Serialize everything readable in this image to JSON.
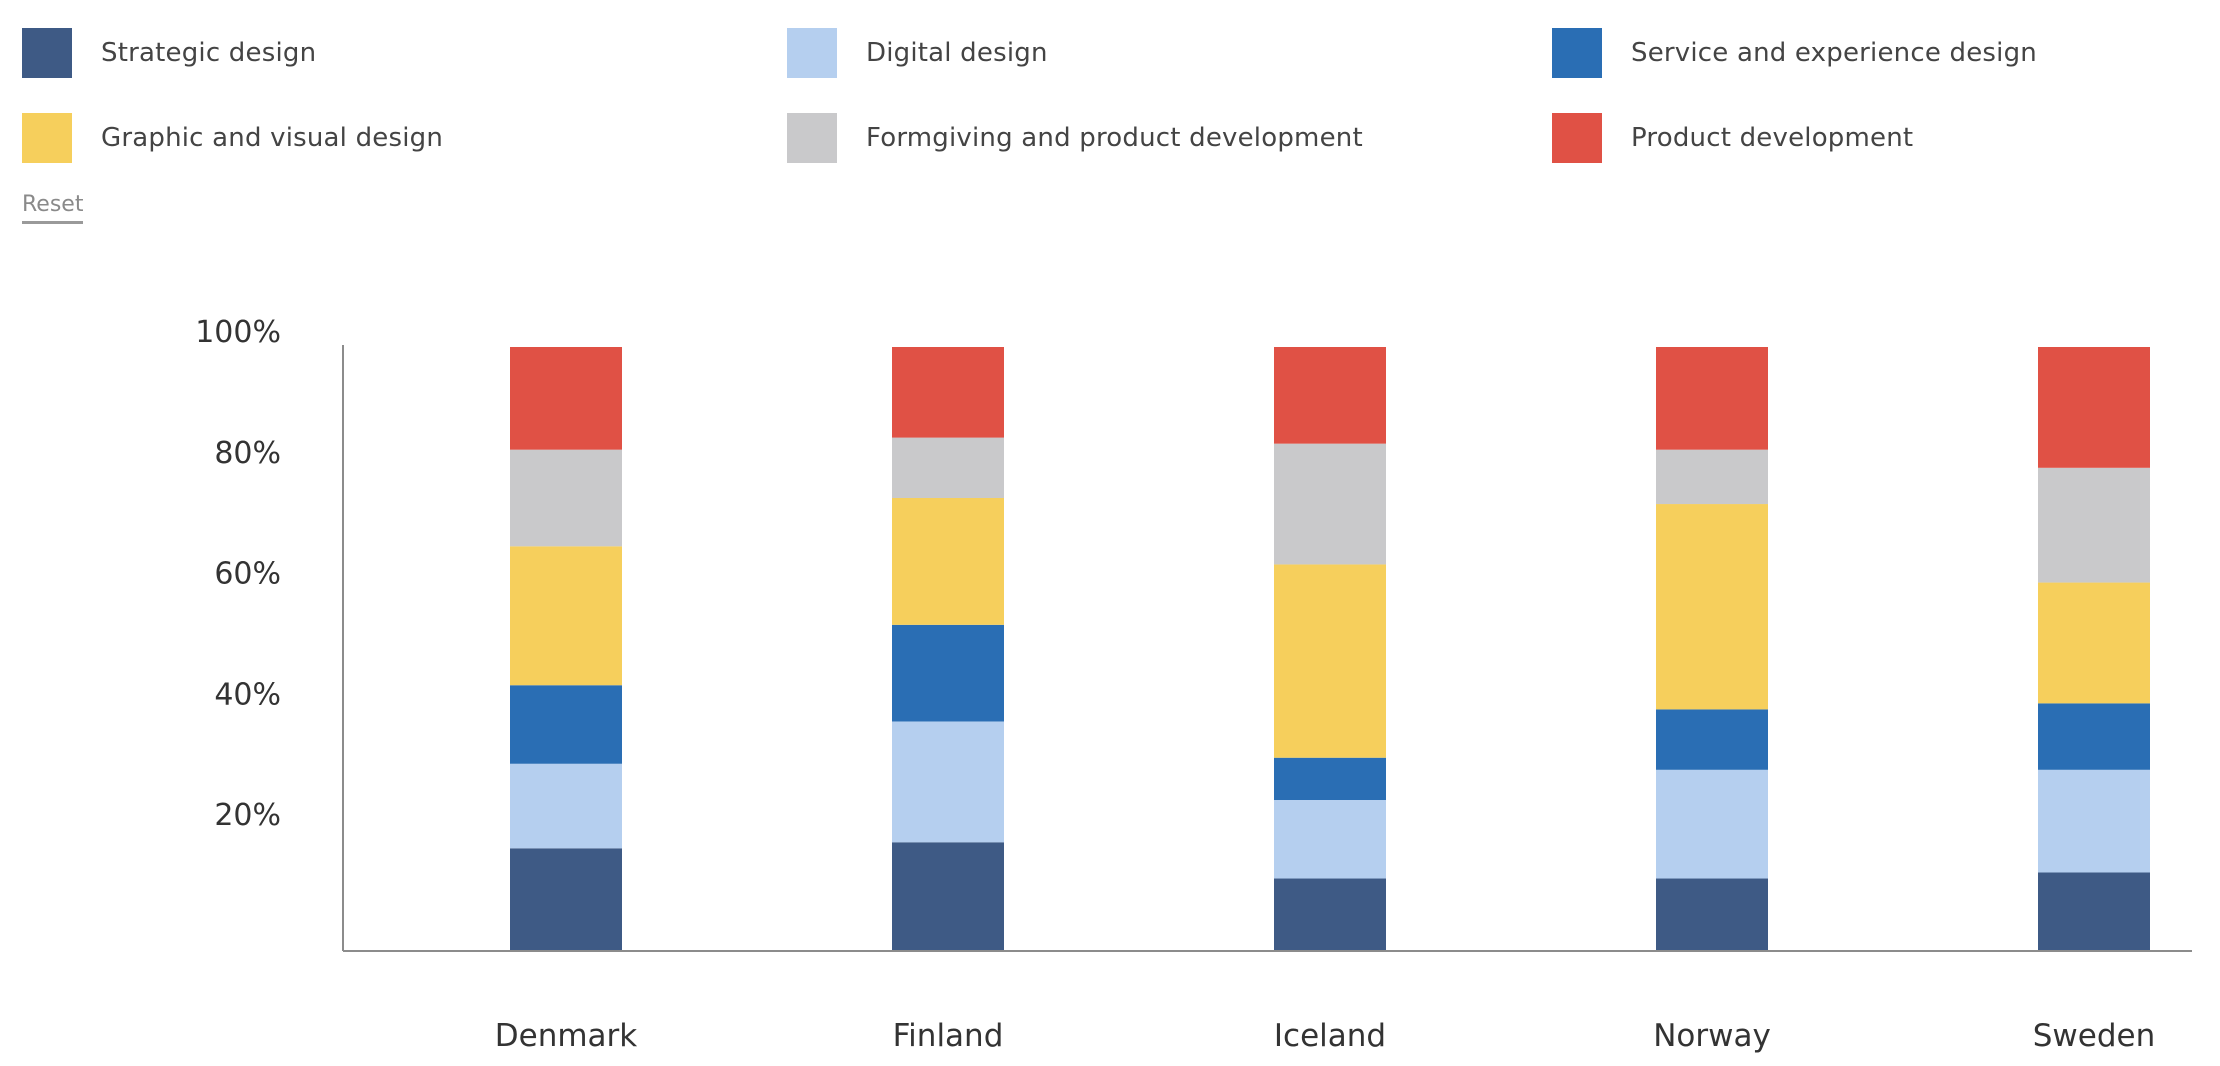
{
  "legend": {
    "items": [
      {
        "label": "Strategic design",
        "color": "#3e5a85"
      },
      {
        "label": "Digital design",
        "color": "#b5cfef"
      },
      {
        "label": "Service and experience design",
        "color": "#2a6eb4"
      },
      {
        "label": "Graphic and visual design",
        "color": "#f6cf5c"
      },
      {
        "label": "Formgiving and product development",
        "color": "#c9c9cb"
      },
      {
        "label": "Product development",
        "color": "#e05145"
      }
    ],
    "reset_label": "Reset"
  },
  "chart_data": {
    "type": "bar",
    "stacked": true,
    "categories": [
      "Denmark",
      "Finland",
      "Iceland",
      "Norway",
      "Sweden"
    ],
    "series": [
      {
        "name": "Strategic design",
        "values": [
          17,
          18,
          12,
          12,
          13
        ]
      },
      {
        "name": "Digital design",
        "values": [
          14,
          20,
          13,
          18,
          17
        ]
      },
      {
        "name": "Service and experience design",
        "values": [
          13,
          16,
          7,
          10,
          11
        ]
      },
      {
        "name": "Graphic and visual design",
        "values": [
          23,
          21,
          32,
          34,
          20
        ]
      },
      {
        "name": "Formgiving and product development",
        "values": [
          16,
          10,
          20,
          9,
          19
        ]
      },
      {
        "name": "Product development",
        "values": [
          17,
          15,
          16,
          17,
          20
        ]
      }
    ],
    "ytick_labels": [
      "20%",
      "40%",
      "60%",
      "80%",
      "100%"
    ],
    "ytick_values": [
      20,
      40,
      60,
      80,
      100
    ],
    "ylim": [
      0,
      100
    ],
    "xlabel": "",
    "ylabel": "",
    "grid": false
  }
}
